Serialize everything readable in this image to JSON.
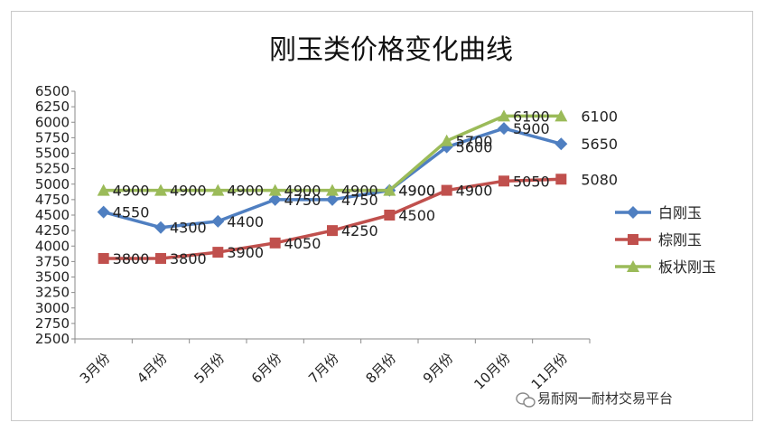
{
  "chart_data": {
    "type": "line",
    "title": "刚玉类价格变化曲线",
    "categories": [
      "3月份",
      "4月份",
      "5月份",
      "6月份",
      "7月份",
      "8月份",
      "9月份",
      "10月份",
      "11月份"
    ],
    "ylim": [
      2500,
      6500
    ],
    "yticks": [
      2500,
      2750,
      3000,
      3250,
      3500,
      3750,
      4000,
      4250,
      4500,
      4750,
      5000,
      5250,
      5500,
      5750,
      6000,
      6250,
      6500
    ],
    "grid": false,
    "legend_position": "right",
    "series": [
      {
        "name": "白刚玉",
        "color": "#4f7fc1",
        "marker": "diamond",
        "values": [
          4550,
          4300,
          4400,
          4750,
          4750,
          4900,
          5600,
          5900,
          5650
        ],
        "labels": [
          "4550",
          "4300",
          "4400",
          "4750",
          "4750",
          "4900",
          "5600",
          "5900",
          "5650"
        ]
      },
      {
        "name": "棕刚玉",
        "color": "#c0504d",
        "marker": "square",
        "values": [
          3800,
          3800,
          3900,
          4050,
          4250,
          4500,
          4900,
          5050,
          5080
        ],
        "labels": [
          "3800",
          "3800",
          "3900",
          "4050",
          "4250",
          "4500",
          "4900",
          "5050",
          "5080"
        ]
      },
      {
        "name": "板状刚玉",
        "color": "#9bbb59",
        "marker": "triangle",
        "values": [
          4900,
          4900,
          4900,
          4900,
          4900,
          4900,
          5700,
          6100,
          6100
        ],
        "labels": [
          "4900",
          "4900",
          "4900",
          "4900",
          "4900",
          "4900",
          "5700",
          "6100",
          "6100"
        ]
      }
    ]
  },
  "watermark": {
    "text": "易耐网一耐材交易平台",
    "icon": "wechat-icon"
  }
}
